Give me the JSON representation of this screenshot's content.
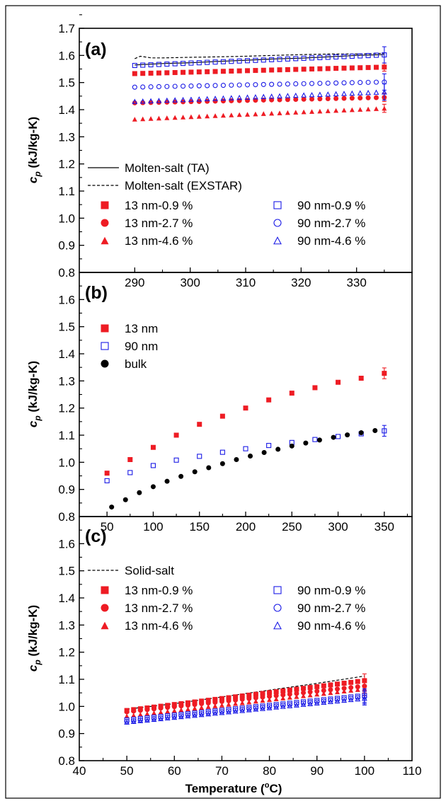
{
  "chart_data": [
    {
      "type": "scatter",
      "panel_label": "(a)",
      "xlabel": "",
      "ylabel": "c_p (kJ/kg-K)",
      "ylabel_main": "c",
      "ylabel_sub": "p",
      "ylabel_rest": " (kJ/kg-K)",
      "xlim": [
        280,
        340
      ],
      "ylim": [
        0.8,
        1.7
      ],
      "xticks": [
        290,
        300,
        310,
        320,
        330
      ],
      "yticks": [
        0.8,
        0.9,
        1.0,
        1.1,
        1.2,
        1.3,
        1.4,
        1.5,
        1.6,
        1.7
      ],
      "ytick_labels": [
        "0.8",
        "0.9",
        "1.0",
        "1.1",
        "1.2",
        "1.3",
        "1.4",
        "1.5",
        "1.6",
        "1.7"
      ],
      "legend_position": "lower-left",
      "series": [
        {
          "name": "Molten-salt (TA)",
          "style": "solid-line",
          "color": "#000000",
          "x": [
            290,
            295,
            300,
            305,
            310,
            315,
            320,
            325,
            330,
            335
          ],
          "y": [
            1.565,
            1.57,
            1.573,
            1.578,
            1.582,
            1.587,
            1.59,
            1.595,
            1.6,
            1.603
          ]
        },
        {
          "name": "Molten-salt (EXSTAR)",
          "style": "dashed-line",
          "color": "#000000",
          "x": [
            290,
            291,
            293,
            295,
            300,
            305,
            310,
            315,
            320,
            325,
            330,
            335
          ],
          "y": [
            1.588,
            1.597,
            1.591,
            1.591,
            1.593,
            1.595,
            1.597,
            1.6,
            1.603,
            1.605,
            1.605,
            1.608
          ]
        },
        {
          "name": "13 nm-0.9 %",
          "marker": "filled-square",
          "color": "#ee1c24",
          "x_start": 290,
          "x_end": 335,
          "y_start": 1.533,
          "y_end": 1.557,
          "count": 32,
          "err_end": 0.015
        },
        {
          "name": "13 nm-2.7 %",
          "marker": "filled-circle",
          "color": "#ee1c24",
          "x_start": 290,
          "x_end": 335,
          "y_start": 1.425,
          "y_end": 1.445,
          "count": 32,
          "err_end": 0.015
        },
        {
          "name": "13 nm-4.6 %",
          "marker": "filled-triangle",
          "color": "#ee1c24",
          "x_start": 290,
          "x_end": 335,
          "y_start": 1.365,
          "y_end": 1.405,
          "count": 32,
          "err_end": 0.015
        },
        {
          "name": "90 nm-0.9 %",
          "marker": "open-square",
          "color": "#1a1ae6",
          "x_start": 290,
          "x_end": 335,
          "y_start": 1.563,
          "y_end": 1.602,
          "count": 32,
          "err_end": 0.03
        },
        {
          "name": "90 nm-2.7 %",
          "marker": "open-circle",
          "color": "#1a1ae6",
          "x_start": 290,
          "x_end": 335,
          "y_start": 1.483,
          "y_end": 1.502,
          "count": 32,
          "err_end": 0.03
        },
        {
          "name": "90 nm-4.6 %",
          "marker": "open-triangle",
          "color": "#1a1ae6",
          "x_start": 290,
          "x_end": 335,
          "y_start": 1.43,
          "y_end": 1.465,
          "count": 32,
          "err_end": 0.03
        }
      ]
    },
    {
      "type": "scatter",
      "panel_label": "(b)",
      "xlabel": "",
      "ylabel": "c_p (kJ/kg-K)",
      "ylabel_main": "c",
      "ylabel_sub": "p",
      "ylabel_rest": " (kJ/kg-K)",
      "xlim": [
        20,
        380
      ],
      "ylim": [
        0.8,
        1.7
      ],
      "xticks": [
        50,
        100,
        150,
        200,
        250,
        300,
        350
      ],
      "yticks": [
        0.8,
        0.9,
        1.0,
        1.1,
        1.2,
        1.3,
        1.4,
        1.5,
        1.6
      ],
      "ytick_labels": [
        "0.8",
        "0.9",
        "1.0",
        "1.1",
        "1.2",
        "1.3",
        "1.4",
        "1.5",
        "1.6"
      ],
      "legend_position": "upper-left",
      "series": [
        {
          "name": "13 nm",
          "marker": "filled-square",
          "color": "#ee1c24",
          "x": [
            50,
            75,
            100,
            125,
            150,
            175,
            200,
            225,
            250,
            275,
            300,
            325,
            350
          ],
          "y": [
            0.96,
            1.01,
            1.055,
            1.1,
            1.14,
            1.17,
            1.2,
            1.23,
            1.255,
            1.275,
            1.295,
            1.31,
            1.328
          ],
          "err_end": 0.02
        },
        {
          "name": "90 nm",
          "marker": "open-square",
          "color": "#1a1ae6",
          "x": [
            50,
            75,
            100,
            125,
            150,
            175,
            200,
            225,
            250,
            275,
            300,
            325,
            350
          ],
          "y": [
            0.932,
            0.962,
            0.988,
            1.008,
            1.022,
            1.037,
            1.05,
            1.062,
            1.073,
            1.084,
            1.095,
            1.105,
            1.116
          ],
          "err_end": 0.02
        },
        {
          "name": "bulk",
          "marker": "filled-circle",
          "color": "#000000",
          "x": [
            55,
            70,
            85,
            100,
            115,
            130,
            145,
            160,
            175,
            190,
            205,
            220,
            235,
            250,
            265,
            280,
            295,
            310,
            325,
            340
          ],
          "y": [
            0.835,
            0.862,
            0.888,
            0.91,
            0.93,
            0.948,
            0.965,
            0.98,
            0.995,
            1.01,
            1.023,
            1.036,
            1.048,
            1.06,
            1.071,
            1.082,
            1.092,
            1.101,
            1.109,
            1.117
          ]
        }
      ]
    },
    {
      "type": "scatter",
      "panel_label": "(c)",
      "xlabel": "Temperature (°C)",
      "xlabel_main": "Temperature (",
      "xlabel_sup": "o",
      "xlabel_rest": "C)",
      "ylabel": "c_p (kJ/kg-K)",
      "ylabel_main": "c",
      "ylabel_sub": "p",
      "ylabel_rest": " (kJ/kg-K)",
      "xlim": [
        40,
        110
      ],
      "ylim": [
        0.8,
        1.7
      ],
      "xticks": [
        40,
        50,
        60,
        70,
        80,
        90,
        100,
        110
      ],
      "yticks": [
        0.8,
        0.9,
        1.0,
        1.1,
        1.2,
        1.3,
        1.4,
        1.5,
        1.6
      ],
      "ytick_labels": [
        "0.8",
        "0.9",
        "1.0",
        "1.1",
        "1.2",
        "1.3",
        "1.4",
        "1.5",
        "1.6"
      ],
      "legend_position": "upper-left",
      "series": [
        {
          "name": "Solid-salt",
          "style": "dashed-line",
          "color": "#000000",
          "x": [
            50,
            60,
            70,
            80,
            90,
            100
          ],
          "y": [
            0.99,
            1.01,
            1.035,
            1.06,
            1.085,
            1.112
          ]
        },
        {
          "name": "13 nm-0.9 %",
          "marker": "filled-square",
          "color": "#ee1c24",
          "x_start": 50,
          "x_end": 100,
          "y_start": 0.985,
          "y_end": 1.095,
          "count": 36,
          "err_end": 0.025
        },
        {
          "name": "13 nm-2.7 %",
          "marker": "filled-circle",
          "color": "#ee1c24",
          "x_start": 50,
          "x_end": 100,
          "y_start": 0.98,
          "y_end": 1.075,
          "count": 36,
          "err_end": 0.025
        },
        {
          "name": "13 nm-4.6 %",
          "marker": "filled-triangle",
          "color": "#ee1c24",
          "x_start": 50,
          "x_end": 100,
          "y_start": 0.965,
          "y_end": 1.065,
          "count": 36,
          "err_end": 0.025
        },
        {
          "name": "90 nm-0.9 %",
          "marker": "open-square",
          "color": "#1a1ae6",
          "x_start": 50,
          "x_end": 100,
          "y_start": 0.95,
          "y_end": 1.04,
          "count": 36,
          "err_end": 0.025
        },
        {
          "name": "90 nm-2.7 %",
          "marker": "open-circle",
          "color": "#1a1ae6",
          "x_start": 50,
          "x_end": 100,
          "y_start": 0.945,
          "y_end": 1.035,
          "count": 36,
          "err_end": 0.025
        },
        {
          "name": "90 nm-4.6 %",
          "marker": "open-triangle",
          "color": "#1a1ae6",
          "x_start": 50,
          "x_end": 100,
          "y_start": 0.942,
          "y_end": 1.03,
          "count": 36,
          "err_end": 0.025
        }
      ]
    }
  ]
}
